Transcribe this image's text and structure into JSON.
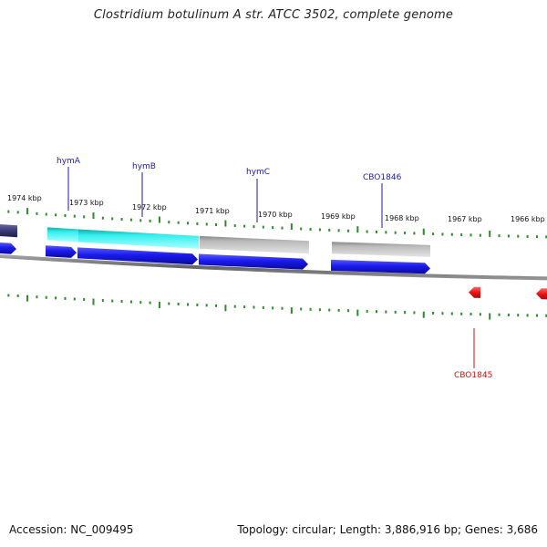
{
  "title": "Clostridium botulinum A str. ATCC 3502, complete genome",
  "footer": {
    "accession": "Accession: NC_009495",
    "summary": "Topology: circular; Length: 3,886,916 bp; Genes: 3,686"
  },
  "colors": {
    "background": "#ffffff",
    "backbone": "#808080",
    "tick": "#2e8b2e",
    "forward_gene": "#1a1aee",
    "reverse_gene": "#ee1111",
    "hym_feature": "#22dddd",
    "grey_feature": "#b8b8b8",
    "dark_feature": "#3a3a7a",
    "forward_label": "#1a1aaa",
    "reverse_label": "#cc1111"
  },
  "kbp_labels": [
    {
      "kbp": 1974,
      "text": "1974 kbp"
    },
    {
      "kbp": 1973,
      "text": "1973 kbp"
    },
    {
      "kbp": 1972,
      "text": "1972 kbp"
    },
    {
      "kbp": 1971,
      "text": "1971 kbp"
    },
    {
      "kbp": 1970,
      "text": "1970 kbp"
    },
    {
      "kbp": 1969,
      "text": "1969 kbp"
    },
    {
      "kbp": 1968,
      "text": "1968 kbp"
    },
    {
      "kbp": 1967,
      "text": "1967 kbp"
    },
    {
      "kbp": 1966,
      "text": "1966 kbp"
    }
  ],
  "gene_labels": [
    {
      "name": "hymA",
      "strand": "forward"
    },
    {
      "name": "hymB",
      "strand": "forward"
    },
    {
      "name": "hymC",
      "strand": "forward"
    },
    {
      "name": "CBO1846",
      "strand": "forward"
    },
    {
      "name": "CBO1845",
      "strand": "reverse"
    }
  ]
}
